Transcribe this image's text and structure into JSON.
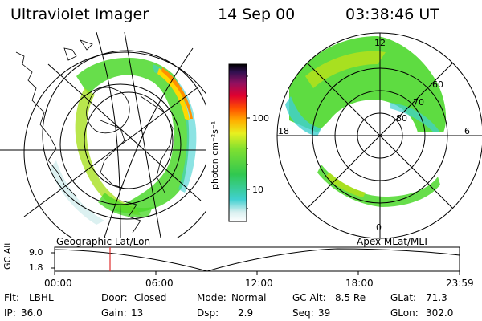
{
  "header": {
    "instrument": "Ultraviolet Imager",
    "date": "14 Sep 00",
    "time": "03:38:46 UT"
  },
  "colorbar": {
    "label": "photon cm⁻²s⁻¹",
    "ticks": [
      "100",
      "10"
    ]
  },
  "left_map": {
    "label": "Geographic Lat/Lon"
  },
  "right_map": {
    "label": "Apex  MLat/MLT",
    "lat_labels": [
      "60",
      "70",
      "80"
    ],
    "mlt_labels": [
      "12",
      "18",
      "6",
      "0"
    ]
  },
  "orbit": {
    "axis_label": "GC Alt",
    "y_ticks": [
      "9.0",
      "1.8"
    ],
    "x_ticks": [
      "00:00",
      "06:00",
      "12:00",
      "18:00",
      "23:59"
    ]
  },
  "status": {
    "row1": [
      {
        "key": "Flt:",
        "val": "LBHL"
      },
      {
        "key": "Door:",
        "val": "Closed"
      },
      {
        "key": "Mode:",
        "val": "Normal"
      },
      {
        "key": "GC Alt:",
        "val": "8.5 Re"
      },
      {
        "key": "GLat:",
        "val": "71.3"
      }
    ],
    "row2": [
      {
        "key": "IP:",
        "val": "36.0"
      },
      {
        "key": "Gain:",
        "val": "13"
      },
      {
        "key": "Dsp:",
        "val": "2.9"
      },
      {
        "key": "Seq:",
        "val": "39"
      },
      {
        "key": "GLon:",
        "val": "302.0"
      }
    ]
  },
  "colors": {
    "aurora_green": "#4cd82c",
    "aurora_lime": "#a8e020",
    "aurora_cyan": "#40d0d0",
    "aurora_yellow": "#ffd800",
    "aurora_orange": "#ff9000",
    "marker_red": "#e03030"
  }
}
